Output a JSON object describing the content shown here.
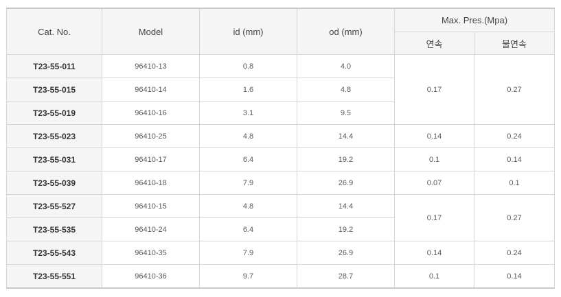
{
  "table": {
    "headers": {
      "cat_no": "Cat. No.",
      "model": "Model",
      "id": "id (mm)",
      "od": "od (mm)",
      "max_pres": "Max. Pres.(Mpa)",
      "continuous": "연속",
      "intermittent": "불연속"
    },
    "rows": [
      {
        "cat": "T23-55-011",
        "model": "96410-13",
        "id": "0.8",
        "od": "4.0"
      },
      {
        "cat": "T23-55-015",
        "model": "96410-14",
        "id": "1.6",
        "od": "4.8"
      },
      {
        "cat": "T23-55-019",
        "model": "96410-16",
        "id": "3.1",
        "od": "9.5"
      },
      {
        "cat": "T23-55-023",
        "model": "96410-25",
        "id": "4.8",
        "od": "14.4"
      },
      {
        "cat": "T23-55-031",
        "model": "96410-17",
        "id": "6.4",
        "od": "19.2"
      },
      {
        "cat": "T23-55-039",
        "model": "96410-18",
        "id": "7.9",
        "od": "26.9"
      },
      {
        "cat": "T23-55-527",
        "model": "96410-15",
        "id": "4.8",
        "od": "14.4"
      },
      {
        "cat": "T23-55-535",
        "model": "96410-24",
        "id": "6.4",
        "od": "19.2"
      },
      {
        "cat": "T23-55-543",
        "model": "96410-35",
        "id": "7.9",
        "od": "26.9"
      },
      {
        "cat": "T23-55-551",
        "model": "96410-36",
        "id": "9.7",
        "od": "28.7"
      }
    ],
    "pressure_groups": [
      {
        "continuous": "0.17",
        "intermittent": "0.27"
      },
      {
        "continuous": "0.14",
        "intermittent": "0.24"
      },
      {
        "continuous": "0.1",
        "intermittent": "0.14"
      },
      {
        "continuous": "0.07",
        "intermittent": "0.1"
      },
      {
        "continuous": "0.17",
        "intermittent": "0.27"
      },
      {
        "continuous": "0.14",
        "intermittent": "0.24"
      },
      {
        "continuous": "0.1",
        "intermittent": "0.14"
      }
    ]
  }
}
